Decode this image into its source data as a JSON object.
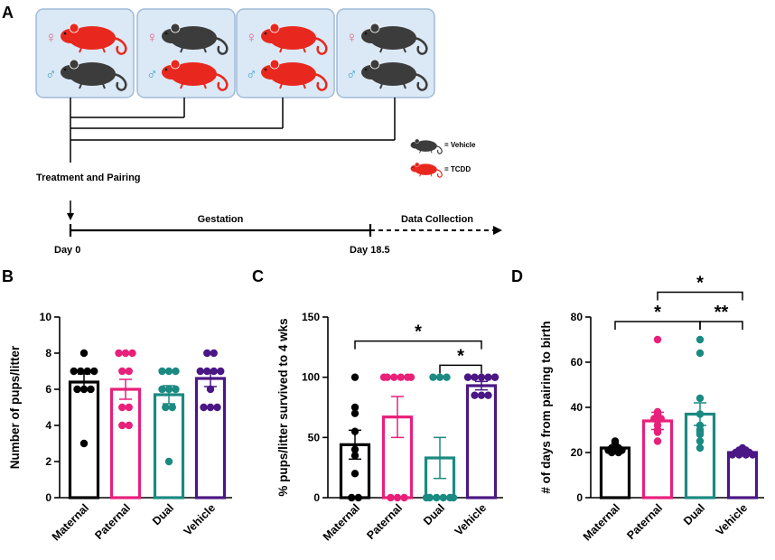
{
  "panel_a": {
    "label": "A",
    "pairs": [
      {
        "female": "tcdd",
        "male": "vehicle"
      },
      {
        "female": "vehicle",
        "male": "tcdd"
      },
      {
        "female": "tcdd",
        "male": "tcdd"
      },
      {
        "female": "vehicle",
        "male": "vehicle"
      }
    ],
    "female_symbol": "♀",
    "male_symbol": "♂",
    "treatment_label": "Treatment and Pairing",
    "gestation_label": "Gestation",
    "data_collection_label": "Data Collection",
    "day0_label": "Day 0",
    "day185_label": "Day 18.5",
    "legend": {
      "vehicle": "= Vehicle",
      "tcdd": "= TCDD"
    },
    "colors": {
      "tcdd": "#e8281e",
      "vehicle": "#3c3c3c",
      "box_fill": "#dbe8f5",
      "box_stroke": "#9fbcd8",
      "female_symbol": "#e06b86",
      "male_symbol": "#4aa3c9"
    },
    "icons": [
      "mouse-icon",
      "female-symbol-icon",
      "male-symbol-icon"
    ]
  },
  "chart_data": [
    {
      "panel": "B",
      "type": "bar",
      "categories": [
        "Maternal",
        "Paternal",
        "Dual",
        "Vehicle"
      ],
      "ylabel": "Number of pups/litter",
      "ylim": [
        0,
        10
      ],
      "yticks": [
        0,
        2,
        4,
        6,
        8,
        10
      ],
      "colors": [
        "#000000",
        "#e8207a",
        "#1a8a82",
        "#4b1785"
      ],
      "values": [
        6.4,
        6.0,
        5.7,
        6.6
      ],
      "sem": [
        0.45,
        0.55,
        0.5,
        0.45
      ],
      "points": [
        [
          8,
          7,
          7,
          7,
          7,
          6,
          6,
          6,
          3
        ],
        [
          8,
          8,
          8,
          7,
          7,
          5,
          5,
          4,
          4
        ],
        [
          7,
          7,
          7,
          6,
          6,
          6,
          5,
          5,
          2
        ],
        [
          8,
          8,
          7,
          7,
          7,
          7,
          6,
          5,
          5,
          5
        ]
      ],
      "significance": []
    },
    {
      "panel": "C",
      "type": "bar",
      "categories": [
        "Maternal",
        "Paternal",
        "Dual",
        "Vehicle"
      ],
      "ylabel": "% pups/litter survived to 4 wks",
      "ylim": [
        0,
        150
      ],
      "yticks": [
        0,
        50,
        100,
        150
      ],
      "colors": [
        "#000000",
        "#e8207a",
        "#1a8a82",
        "#4b1785"
      ],
      "values": [
        44,
        67,
        33,
        93
      ],
      "sem": [
        12,
        17,
        17,
        3.5
      ],
      "points": [
        [
          100,
          75,
          70,
          55,
          40,
          35,
          20,
          0,
          0
        ],
        [
          100,
          100,
          100,
          100,
          100,
          100,
          0,
          0,
          0
        ],
        [
          100,
          100,
          100,
          0,
          0,
          0,
          0,
          0,
          0
        ],
        [
          100,
          100,
          100,
          100,
          100,
          100,
          100,
          85,
          85,
          85
        ]
      ],
      "significance": [
        {
          "from": 0,
          "to": 3,
          "label": "*",
          "y": 130
        },
        {
          "from": 2,
          "to": 3,
          "label": "*",
          "y": 110
        }
      ]
    },
    {
      "panel": "D",
      "type": "bar",
      "categories": [
        "Maternal",
        "Paternal",
        "Dual",
        "Vehicle"
      ],
      "ylabel": "# of days from pairing to birth",
      "ylim": [
        0,
        80
      ],
      "yticks": [
        0,
        20,
        40,
        60,
        80
      ],
      "colors": [
        "#000000",
        "#e8207a",
        "#1a8a82",
        "#4b1785"
      ],
      "values": [
        22,
        34,
        37,
        20
      ],
      "sem": [
        0.9,
        3.8,
        5.0,
        0.7
      ],
      "points": [
        [
          25,
          24,
          23,
          22,
          22,
          21,
          21,
          21,
          20,
          20
        ],
        [
          70,
          38,
          37,
          35,
          35,
          34,
          32,
          30,
          29,
          25
        ],
        [
          70,
          64,
          44,
          37,
          32,
          30,
          29,
          28,
          25,
          22
        ],
        [
          22,
          21,
          21,
          20,
          20,
          20,
          19,
          19,
          19,
          19
        ]
      ],
      "significance": [
        {
          "from": 0,
          "to": 2,
          "label": "*",
          "y": 78
        },
        {
          "from": 2,
          "to": 3,
          "label": "**",
          "y": 78
        },
        {
          "from": 1,
          "to": 3,
          "label": "*",
          "y": 91
        }
      ]
    }
  ]
}
